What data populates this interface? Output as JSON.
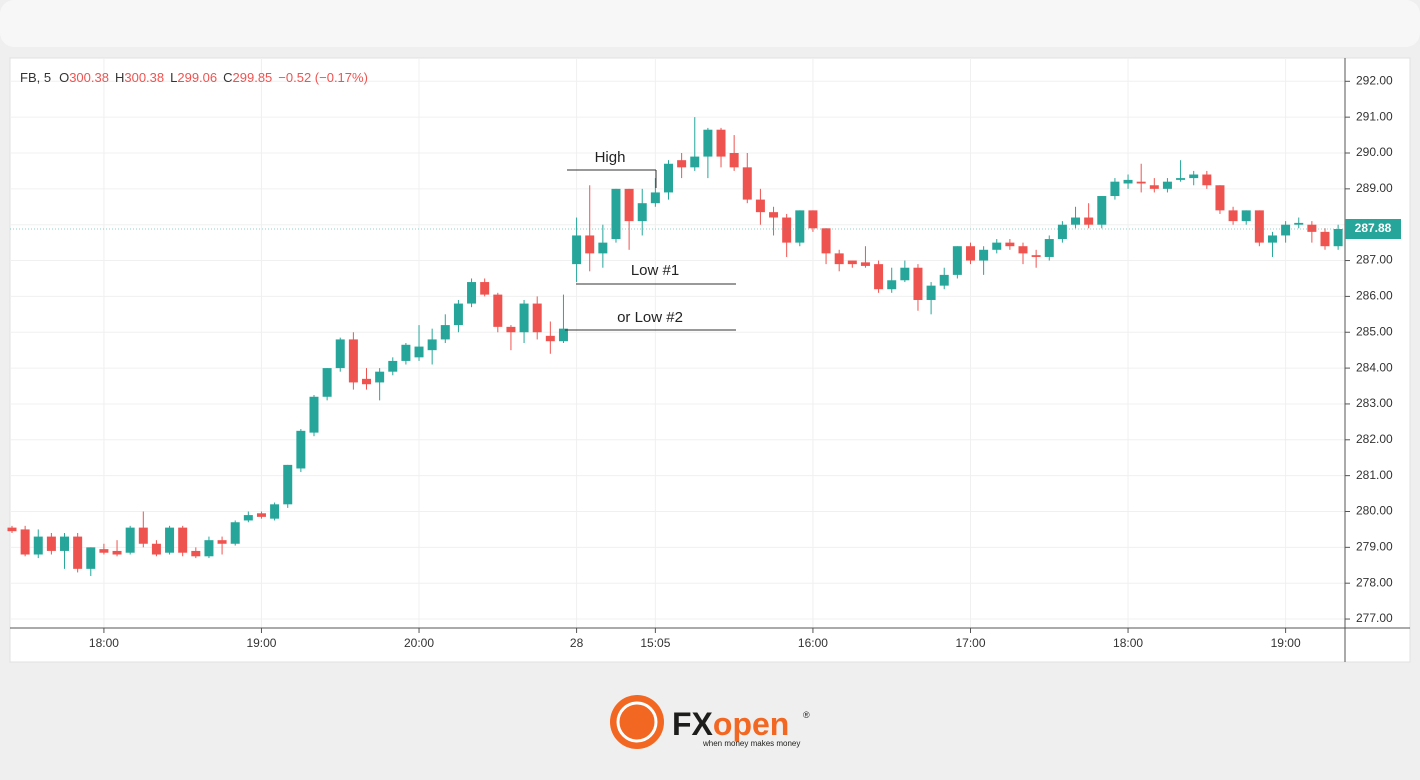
{
  "chart_data": {
    "type": "candlestick",
    "legend": {
      "symbol": "FB, 5",
      "fields": [
        {
          "label": "O",
          "value": "300.38"
        },
        {
          "label": "H",
          "value": "300.38"
        },
        {
          "label": "L",
          "value": "299.06"
        },
        {
          "label": "C",
          "value": "299.85"
        }
      ],
      "change": "−0.52 (−0.17%)"
    },
    "annotations": [
      "High",
      "Low #1",
      "or Low #2"
    ],
    "categories": [
      null,
      null,
      null,
      null,
      null,
      null,
      null,
      "18:00",
      null,
      null,
      null,
      null,
      null,
      null,
      null,
      null,
      null,
      null,
      null,
      "19:00",
      null,
      null,
      null,
      null,
      null,
      null,
      null,
      null,
      null,
      null,
      null,
      "20:00",
      null,
      null,
      null,
      null,
      null,
      null,
      null,
      null,
      null,
      null,
      null,
      "28",
      null,
      null,
      null,
      null,
      null,
      "15:05",
      null,
      null,
      null,
      null,
      null,
      null,
      null,
      null,
      null,
      null,
      null,
      "16:00",
      null,
      null,
      null,
      null,
      null,
      null,
      null,
      null,
      null,
      null,
      null,
      "17:00",
      null,
      null,
      null,
      null,
      null,
      null,
      null,
      null,
      null,
      null,
      null,
      "18:00",
      null,
      null,
      null,
      null,
      null,
      null,
      null,
      null,
      null,
      null,
      null,
      "19:00",
      null,
      null,
      null,
      null
    ],
    "open": [
      279.55,
      279.5,
      278.8,
      279.3,
      278.9,
      279.3,
      278.4,
      278.95,
      278.9,
      278.85,
      279.55,
      279.1,
      278.85,
      279.55,
      278.9,
      278.75,
      279.2,
      279.1,
      279.75,
      279.95,
      279.8,
      280.2,
      281.2,
      282.2,
      283.2,
      284.0,
      284.8,
      283.7,
      283.6,
      283.9,
      284.2,
      284.3,
      284.5,
      284.8,
      285.2,
      285.8,
      286.4,
      286.05,
      285.15,
      285.0,
      285.8,
      284.9,
      284.75,
      286.9,
      287.7,
      287.2,
      287.6,
      289.0,
      288.1,
      288.6,
      288.9,
      289.8,
      289.6,
      289.9,
      290.65,
      290.0,
      289.6,
      288.7,
      288.35,
      288.2,
      287.5,
      288.4,
      287.9,
      287.2,
      287.0,
      286.95,
      286.9,
      286.2,
      286.45,
      286.8,
      285.9,
      286.3,
      286.6,
      287.4,
      287.0,
      287.3,
      287.5,
      287.4,
      287.15,
      287.1,
      287.6,
      288.0,
      288.2,
      288.0,
      288.8,
      289.15,
      289.2,
      289.1,
      289.0,
      289.25,
      289.3,
      289.4,
      289.1,
      288.4,
      288.1,
      288.4,
      287.5,
      287.7,
      288.0,
      288.0,
      287.8,
      287.4
    ],
    "high": [
      279.6,
      279.6,
      279.5,
      279.4,
      279.4,
      279.4,
      279.0,
      279.1,
      279.2,
      279.6,
      280.0,
      279.2,
      279.6,
      279.6,
      279.0,
      279.3,
      279.3,
      279.75,
      280.0,
      280.0,
      280.25,
      281.3,
      282.3,
      283.25,
      284.0,
      284.85,
      285.0,
      284.0,
      284.0,
      284.3,
      284.7,
      285.2,
      285.1,
      285.5,
      285.9,
      286.5,
      286.5,
      286.1,
      285.2,
      285.9,
      286.0,
      285.3,
      286.05,
      288.2,
      289.1,
      288.0,
      289.0,
      289.0,
      289.0,
      289.3,
      289.8,
      290.0,
      291.0,
      290.7,
      290.7,
      290.5,
      290.0,
      289.0,
      288.5,
      288.3,
      288.4,
      288.4,
      287.9,
      287.3,
      287.0,
      287.4,
      287.0,
      286.8,
      287.0,
      286.9,
      286.4,
      286.8,
      287.4,
      287.5,
      287.4,
      287.6,
      287.6,
      287.5,
      287.3,
      287.7,
      288.1,
      288.5,
      288.6,
      288.8,
      289.3,
      289.4,
      289.7,
      289.3,
      289.3,
      289.8,
      289.5,
      289.5,
      289.1,
      288.5,
      288.4,
      288.4,
      287.8,
      288.1,
      288.2,
      288.1,
      287.9,
      288.0
    ],
    "low": [
      279.4,
      278.75,
      278.7,
      278.8,
      278.4,
      278.3,
      278.2,
      278.8,
      278.75,
      278.8,
      279.0,
      278.75,
      278.8,
      278.75,
      278.7,
      278.7,
      278.8,
      279.05,
      279.7,
      279.8,
      279.75,
      280.1,
      281.1,
      282.1,
      283.1,
      283.9,
      283.4,
      283.4,
      283.1,
      283.8,
      284.1,
      284.2,
      284.1,
      284.7,
      285.0,
      285.7,
      286.0,
      285.0,
      284.5,
      284.7,
      284.8,
      284.4,
      284.7,
      286.4,
      286.7,
      286.8,
      287.5,
      287.3,
      287.7,
      288.5,
      288.7,
      289.3,
      289.5,
      289.3,
      289.6,
      289.5,
      288.6,
      288.0,
      287.7,
      287.1,
      287.4,
      287.8,
      286.9,
      286.7,
      286.8,
      286.8,
      286.1,
      286.1,
      286.4,
      285.6,
      285.5,
      286.2,
      286.5,
      286.9,
      286.6,
      287.2,
      287.3,
      286.9,
      286.8,
      287.0,
      287.5,
      287.9,
      287.9,
      287.9,
      288.7,
      289.0,
      288.9,
      288.9,
      288.9,
      289.2,
      289.1,
      289.0,
      288.3,
      288.0,
      288.0,
      287.4,
      287.1,
      287.5,
      287.9,
      287.5,
      287.3,
      287.3
    ],
    "close": [
      279.45,
      278.8,
      279.3,
      278.9,
      279.3,
      278.4,
      279.0,
      278.85,
      278.8,
      279.55,
      279.1,
      278.8,
      279.55,
      278.85,
      278.75,
      279.2,
      279.1,
      279.7,
      279.9,
      279.85,
      280.2,
      281.3,
      282.25,
      283.2,
      284.0,
      284.8,
      283.6,
      283.55,
      283.9,
      284.2,
      284.65,
      284.6,
      284.8,
      285.2,
      285.8,
      286.4,
      286.05,
      285.15,
      285.0,
      285.8,
      285.0,
      284.75,
      285.1,
      287.7,
      287.2,
      287.5,
      289.0,
      288.1,
      288.6,
      288.9,
      289.7,
      289.6,
      289.9,
      290.65,
      289.9,
      289.6,
      288.7,
      288.35,
      288.2,
      287.5,
      288.4,
      287.9,
      287.2,
      286.9,
      286.9,
      286.85,
      286.2,
      286.45,
      286.8,
      285.9,
      286.3,
      286.6,
      287.4,
      287.0,
      287.3,
      287.5,
      287.4,
      287.2,
      287.1,
      287.6,
      288.0,
      288.2,
      288.0,
      288.8,
      289.2,
      289.25,
      289.15,
      289.0,
      289.2,
      289.3,
      289.4,
      289.1,
      288.4,
      288.1,
      288.4,
      287.5,
      287.7,
      288.0,
      288.05,
      287.8,
      287.4,
      287.88
    ],
    "up_color": "#26a69a",
    "down_color": "#ef5350",
    "last_price": 287.88,
    "ylim": [
      276.75,
      292.65
    ],
    "yticks": [
      {
        "value": 277,
        "label": "277.00"
      },
      {
        "value": 278,
        "label": "278.00"
      },
      {
        "value": 279,
        "label": "279.00"
      },
      {
        "value": 280,
        "label": "280.00"
      },
      {
        "value": 281,
        "label": "281.00"
      },
      {
        "value": 282,
        "label": "282.00"
      },
      {
        "value": 283,
        "label": "283.00"
      },
      {
        "value": 284,
        "label": "284.00"
      },
      {
        "value": 285,
        "label": "285.00"
      },
      {
        "value": 286,
        "label": "286.00"
      },
      {
        "value": 287,
        "label": "287.00"
      },
      {
        "value": 288,
        "label": "288.00"
      },
      {
        "value": 289,
        "label": "289.00"
      },
      {
        "value": 290,
        "label": "290.00"
      },
      {
        "value": 291,
        "label": "291.00"
      },
      {
        "value": 292,
        "label": "292.00"
      }
    ],
    "grid": true
  },
  "logo": {
    "prefix": "FX",
    "suffix": "open",
    "mark": "®",
    "tagline": "when money makes money"
  }
}
